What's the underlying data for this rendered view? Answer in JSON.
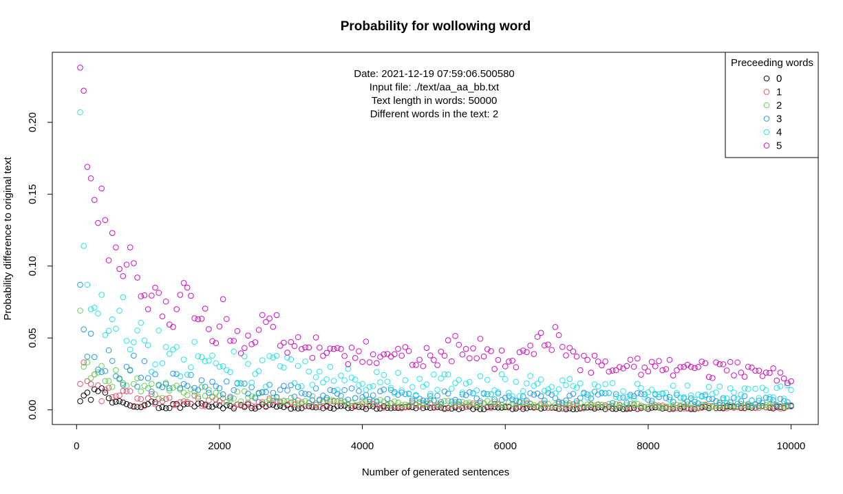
{
  "chart_data": {
    "type": "scatter",
    "title": "Probability for wollowing word",
    "xlabel": "Number of generated sentences",
    "ylabel": "Probability difference to original text",
    "xlim": [
      -340,
      10380
    ],
    "ylim": [
      -0.0102,
      0.2487
    ],
    "x_ticks": [
      "0",
      "2000",
      "4000",
      "6000",
      "8000",
      "10000"
    ],
    "y_ticks": [
      "0.00",
      "0.05",
      "0.10",
      "0.15",
      "0.20"
    ],
    "annotation": [
      "Date: 2021-12-19 07:59:06.500580",
      "Input file: ./text/aa_aa_bb.txt",
      "Text length in words: 50000",
      "Different words in the text: 2"
    ],
    "legend": {
      "title": "Preceeding words",
      "position": "top-right",
      "entries": [
        "0",
        "1",
        "2",
        "3",
        "4",
        "5"
      ]
    },
    "colors": [
      "#000000",
      "#DF536B",
      "#61D04F",
      "#2297E6",
      "#28E2E5",
      "#CD0BBC"
    ],
    "x_spacing": 50,
    "x_count": 200,
    "series": [
      {
        "name": "0",
        "key_values": [
          [
            50,
            0.006
          ],
          [
            100,
            0.01
          ],
          [
            150,
            0.012
          ],
          [
            200,
            0.007
          ],
          [
            300,
            0.013
          ],
          [
            350,
            0.015
          ],
          [
            400,
            0.012
          ],
          [
            500,
            0.005
          ],
          [
            1000,
            0.004
          ],
          [
            2000,
            0.003
          ],
          [
            4000,
            0.002
          ],
          [
            6000,
            0.0015
          ],
          [
            8000,
            0.0012
          ],
          [
            10000,
            0.002
          ]
        ]
      },
      {
        "name": "1",
        "key_values": [
          [
            50,
            0.018
          ],
          [
            100,
            0.033
          ],
          [
            150,
            0.02
          ],
          [
            200,
            0.018
          ],
          [
            300,
            0.017
          ],
          [
            400,
            0.014
          ],
          [
            600,
            0.01
          ],
          [
            1000,
            0.008
          ],
          [
            2000,
            0.006
          ],
          [
            4000,
            0.004
          ],
          [
            6000,
            0.003
          ],
          [
            8000,
            0.0025
          ],
          [
            10000,
            0.002
          ]
        ]
      },
      {
        "name": "2",
        "key_values": [
          [
            50,
            0.069
          ],
          [
            100,
            0.03
          ],
          [
            150,
            0.033
          ],
          [
            200,
            0.022
          ],
          [
            300,
            0.026
          ],
          [
            400,
            0.02
          ],
          [
            600,
            0.022
          ],
          [
            800,
            0.018
          ],
          [
            1000,
            0.015
          ],
          [
            1500,
            0.012
          ],
          [
            2000,
            0.01
          ],
          [
            3000,
            0.008
          ],
          [
            4000,
            0.006
          ],
          [
            6000,
            0.004
          ],
          [
            8000,
            0.003
          ],
          [
            10000,
            0.003
          ]
        ]
      },
      {
        "name": "3",
        "key_values": [
          [
            50,
            0.087
          ],
          [
            100,
            0.056
          ],
          [
            150,
            0.037
          ],
          [
            200,
            0.053
          ],
          [
            300,
            0.028
          ],
          [
            400,
            0.027
          ],
          [
            500,
            0.034
          ],
          [
            700,
            0.03
          ],
          [
            1000,
            0.022
          ],
          [
            1500,
            0.018
          ],
          [
            2000,
            0.015
          ],
          [
            3000,
            0.012
          ],
          [
            4000,
            0.01
          ],
          [
            5000,
            0.009
          ],
          [
            6000,
            0.008
          ],
          [
            7000,
            0.009
          ],
          [
            8000,
            0.008
          ],
          [
            9000,
            0.008
          ],
          [
            10000,
            0.005
          ]
        ]
      },
      {
        "name": "4",
        "key_values": [
          [
            50,
            0.207
          ],
          [
            100,
            0.114
          ],
          [
            150,
            0.087
          ],
          [
            200,
            0.07
          ],
          [
            250,
            0.071
          ],
          [
            300,
            0.067
          ],
          [
            350,
            0.08
          ],
          [
            400,
            0.052
          ],
          [
            450,
            0.055
          ],
          [
            500,
            0.063
          ],
          [
            600,
            0.069
          ],
          [
            700,
            0.048
          ],
          [
            800,
            0.047
          ],
          [
            1000,
            0.045
          ],
          [
            1500,
            0.035
          ],
          [
            2000,
            0.03
          ],
          [
            2500,
            0.025
          ],
          [
            3000,
            0.028
          ],
          [
            3500,
            0.024
          ],
          [
            4000,
            0.02
          ],
          [
            5000,
            0.018
          ],
          [
            6000,
            0.017
          ],
          [
            7000,
            0.015
          ],
          [
            8000,
            0.013
          ],
          [
            9000,
            0.012
          ],
          [
            10000,
            0.012
          ]
        ]
      },
      {
        "name": "5",
        "key_values": [
          [
            50,
            0.238
          ],
          [
            100,
            0.222
          ],
          [
            150,
            0.169
          ],
          [
            200,
            0.161
          ],
          [
            250,
            0.146
          ],
          [
            300,
            0.13
          ],
          [
            350,
            0.154
          ],
          [
            400,
            0.132
          ],
          [
            450,
            0.104
          ],
          [
            500,
            0.123
          ],
          [
            550,
            0.113
          ],
          [
            600,
            0.098
          ],
          [
            650,
            0.093
          ],
          [
            700,
            0.101
          ],
          [
            750,
            0.113
          ],
          [
            800,
            0.102
          ],
          [
            850,
            0.092
          ],
          [
            900,
            0.079
          ],
          [
            1000,
            0.07
          ],
          [
            1100,
            0.085
          ],
          [
            1200,
            0.065
          ],
          [
            1400,
            0.07
          ],
          [
            1550,
            0.085
          ],
          [
            1700,
            0.063
          ],
          [
            2000,
            0.058
          ],
          [
            2050,
            0.077
          ],
          [
            2200,
            0.048
          ],
          [
            2500,
            0.047
          ],
          [
            2600,
            0.066
          ],
          [
            3000,
            0.045
          ],
          [
            3500,
            0.04
          ],
          [
            4000,
            0.04
          ],
          [
            5000,
            0.038
          ],
          [
            5400,
            0.046
          ],
          [
            6000,
            0.033
          ],
          [
            6800,
            0.052
          ],
          [
            7000,
            0.033
          ],
          [
            8000,
            0.03
          ],
          [
            9000,
            0.028
          ],
          [
            9500,
            0.028
          ],
          [
            10000,
            0.022
          ]
        ]
      }
    ]
  }
}
